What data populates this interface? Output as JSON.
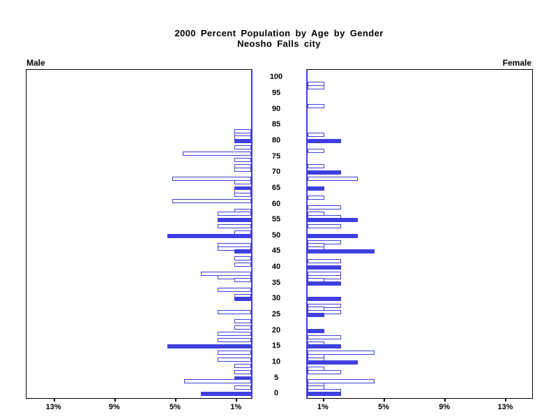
{
  "title": {
    "line1": "2000 Percent Population by Age by Gender",
    "line2": "Neosho Falls city"
  },
  "panel_labels": {
    "left": "Male",
    "right": "Female"
  },
  "colors": {
    "bar_blue": "#3f3fe0",
    "axis_black": "#000000",
    "background": "#ffffff"
  },
  "chart_data": {
    "type": "bar",
    "subtype": "population-pyramid",
    "title": "2000 Percent Population by Age by Gender",
    "subtitle": "Neosho Falls city",
    "orientation": "horizontal back-to-back, male left / female right",
    "highlight_rule": "ages at labeled 5-year ticks are drawn as solid filled bars; other single-year ages are hollow outlined bars",
    "age_axis": {
      "label_position": "center",
      "min": 0,
      "max": 100,
      "tick_interval": 5,
      "ticks": [
        0,
        5,
        10,
        15,
        20,
        25,
        30,
        35,
        40,
        45,
        50,
        55,
        60,
        65,
        70,
        75,
        80,
        85,
        90,
        95,
        100
      ]
    },
    "pct_axis": {
      "tick_values": [
        1,
        5,
        9,
        13
      ],
      "left_tick_labels": [
        "13%",
        "9%",
        "5%",
        "1%"
      ],
      "right_tick_labels": [
        "1%",
        "5%",
        "9%",
        "13%"
      ],
      "unit": "percent of gender population",
      "max": 14.7
    },
    "male": [
      {
        "age": 83,
        "pct": 1.1,
        "filled": false
      },
      {
        "age": 82,
        "pct": 1.1,
        "filled": false
      },
      {
        "age": 81,
        "pct": 1.1,
        "filled": false
      },
      {
        "age": 80,
        "pct": 1.1,
        "filled": true
      },
      {
        "age": 78,
        "pct": 1.1,
        "filled": false
      },
      {
        "age": 76,
        "pct": 4.5,
        "filled": false
      },
      {
        "age": 74,
        "pct": 1.1,
        "filled": false
      },
      {
        "age": 72,
        "pct": 1.1,
        "filled": false
      },
      {
        "age": 71,
        "pct": 1.1,
        "filled": false
      },
      {
        "age": 68,
        "pct": 5.2,
        "filled": false
      },
      {
        "age": 67,
        "pct": 1.1,
        "filled": false
      },
      {
        "age": 65,
        "pct": 1.1,
        "filled": true
      },
      {
        "age": 64,
        "pct": 1.1,
        "filled": false
      },
      {
        "age": 63,
        "pct": 1.1,
        "filled": false
      },
      {
        "age": 61,
        "pct": 5.2,
        "filled": false
      },
      {
        "age": 58,
        "pct": 1.1,
        "filled": false
      },
      {
        "age": 57,
        "pct": 2.2,
        "filled": false
      },
      {
        "age": 55,
        "pct": 2.2,
        "filled": true
      },
      {
        "age": 53,
        "pct": 2.2,
        "filled": false
      },
      {
        "age": 51,
        "pct": 1.1,
        "filled": false
      },
      {
        "age": 50,
        "pct": 5.5,
        "filled": true
      },
      {
        "age": 47,
        "pct": 2.2,
        "filled": false
      },
      {
        "age": 46,
        "pct": 2.2,
        "filled": false
      },
      {
        "age": 45,
        "pct": 1.1,
        "filled": true
      },
      {
        "age": 43,
        "pct": 1.1,
        "filled": false
      },
      {
        "age": 41,
        "pct": 1.1,
        "filled": false
      },
      {
        "age": 38,
        "pct": 3.3,
        "filled": false
      },
      {
        "age": 37,
        "pct": 2.2,
        "filled": false
      },
      {
        "age": 36,
        "pct": 1.1,
        "filled": false
      },
      {
        "age": 33,
        "pct": 2.2,
        "filled": false
      },
      {
        "age": 31,
        "pct": 1.1,
        "filled": false
      },
      {
        "age": 30,
        "pct": 1.1,
        "filled": true
      },
      {
        "age": 26,
        "pct": 2.2,
        "filled": false
      },
      {
        "age": 23,
        "pct": 1.1,
        "filled": false
      },
      {
        "age": 21,
        "pct": 1.1,
        "filled": false
      },
      {
        "age": 19,
        "pct": 2.2,
        "filled": false
      },
      {
        "age": 17,
        "pct": 2.2,
        "filled": false
      },
      {
        "age": 15,
        "pct": 5.5,
        "filled": true
      },
      {
        "age": 13,
        "pct": 2.2,
        "filled": false
      },
      {
        "age": 11,
        "pct": 2.2,
        "filled": false
      },
      {
        "age": 9,
        "pct": 1.1,
        "filled": false
      },
      {
        "age": 7,
        "pct": 1.1,
        "filled": false
      },
      {
        "age": 5,
        "pct": 1.1,
        "filled": true
      },
      {
        "age": 4,
        "pct": 4.4,
        "filled": false
      },
      {
        "age": 2,
        "pct": 1.1,
        "filled": false
      },
      {
        "age": 0,
        "pct": 3.3,
        "filled": true
      }
    ],
    "female": [
      {
        "age": 98,
        "pct": 1.1,
        "filled": false
      },
      {
        "age": 97,
        "pct": 1.1,
        "filled": false
      },
      {
        "age": 91,
        "pct": 1.1,
        "filled": false
      },
      {
        "age": 82,
        "pct": 1.1,
        "filled": false
      },
      {
        "age": 80,
        "pct": 2.2,
        "filled": true
      },
      {
        "age": 77,
        "pct": 1.1,
        "filled": false
      },
      {
        "age": 72,
        "pct": 1.1,
        "filled": false
      },
      {
        "age": 70,
        "pct": 2.2,
        "filled": true
      },
      {
        "age": 68,
        "pct": 3.3,
        "filled": false
      },
      {
        "age": 65,
        "pct": 1.1,
        "filled": true
      },
      {
        "age": 62,
        "pct": 1.1,
        "filled": false
      },
      {
        "age": 59,
        "pct": 2.2,
        "filled": false
      },
      {
        "age": 57,
        "pct": 1.1,
        "filled": false
      },
      {
        "age": 56,
        "pct": 2.2,
        "filled": false
      },
      {
        "age": 55,
        "pct": 3.3,
        "filled": true
      },
      {
        "age": 53,
        "pct": 2.2,
        "filled": false
      },
      {
        "age": 50,
        "pct": 3.3,
        "filled": true
      },
      {
        "age": 48,
        "pct": 2.2,
        "filled": false
      },
      {
        "age": 47,
        "pct": 1.1,
        "filled": false
      },
      {
        "age": 46,
        "pct": 1.1,
        "filled": false
      },
      {
        "age": 45,
        "pct": 4.4,
        "filled": true
      },
      {
        "age": 42,
        "pct": 2.2,
        "filled": false
      },
      {
        "age": 40,
        "pct": 2.2,
        "filled": true
      },
      {
        "age": 38,
        "pct": 2.2,
        "filled": false
      },
      {
        "age": 37,
        "pct": 2.2,
        "filled": false
      },
      {
        "age": 36,
        "pct": 1.1,
        "filled": false
      },
      {
        "age": 35,
        "pct": 2.2,
        "filled": true
      },
      {
        "age": 30,
        "pct": 2.2,
        "filled": true
      },
      {
        "age": 28,
        "pct": 2.2,
        "filled": false
      },
      {
        "age": 27,
        "pct": 1.1,
        "filled": false
      },
      {
        "age": 26,
        "pct": 2.2,
        "filled": false
      },
      {
        "age": 25,
        "pct": 1.1,
        "filled": true
      },
      {
        "age": 20,
        "pct": 1.1,
        "filled": true
      },
      {
        "age": 18,
        "pct": 2.2,
        "filled": false
      },
      {
        "age": 16,
        "pct": 1.1,
        "filled": false
      },
      {
        "age": 15,
        "pct": 2.2,
        "filled": true
      },
      {
        "age": 13,
        "pct": 4.4,
        "filled": false
      },
      {
        "age": 12,
        "pct": 1.1,
        "filled": false
      },
      {
        "age": 11,
        "pct": 1.1,
        "filled": false
      },
      {
        "age": 10,
        "pct": 3.3,
        "filled": true
      },
      {
        "age": 8,
        "pct": 1.1,
        "filled": false
      },
      {
        "age": 7,
        "pct": 2.2,
        "filled": false
      },
      {
        "age": 4,
        "pct": 4.4,
        "filled": false
      },
      {
        "age": 3,
        "pct": 1.1,
        "filled": false
      },
      {
        "age": 2,
        "pct": 1.1,
        "filled": false
      },
      {
        "age": 1,
        "pct": 2.2,
        "filled": false
      },
      {
        "age": 0,
        "pct": 2.2,
        "filled": true
      }
    ]
  }
}
